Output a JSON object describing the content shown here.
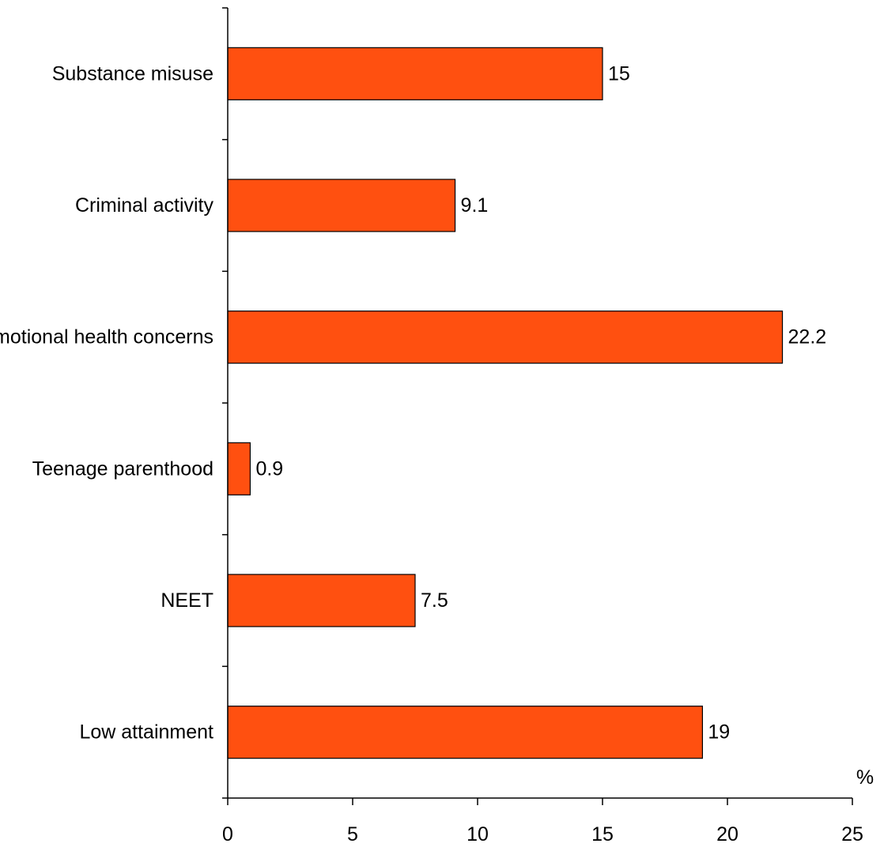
{
  "chart_data": {
    "type": "bar",
    "orientation": "horizontal",
    "title": "",
    "xlabel": "",
    "ylabel": "",
    "x_unit": "%",
    "categories": [
      "Substance misuse",
      "Criminal activity",
      "Emotional health concerns",
      "Teenage parenthood",
      "NEET",
      "Low attainment"
    ],
    "values": [
      15,
      9.1,
      22.2,
      0.9,
      7.5,
      19
    ],
    "value_labels": [
      "15",
      "9.1",
      "22.2",
      "0.9",
      "7.5",
      "19"
    ],
    "xlim": [
      0,
      25
    ],
    "x_ticks": [
      "0",
      "5",
      "10",
      "15",
      "20",
      "25"
    ],
    "grid": false,
    "legend": "none",
    "bar_color": "#FF5010"
  }
}
